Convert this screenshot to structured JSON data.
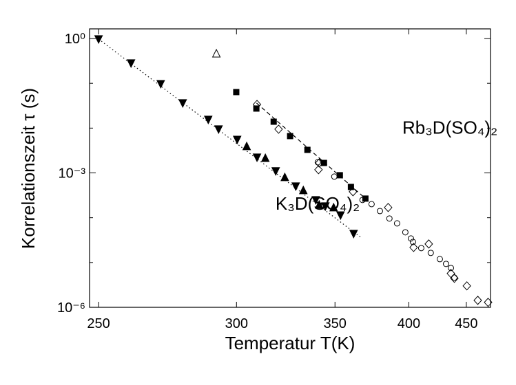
{
  "chart_data": {
    "type": "scatter",
    "xlabel": "Temperatur T(K)",
    "ylabel": "Korrelationszeit τ (s)",
    "xscale": "reciprocal",
    "yscale": "log",
    "xlim": [
      247.3,
      475
    ],
    "ylim": [
      1e-06,
      1.64
    ],
    "xticks": [
      250,
      300,
      350,
      400,
      450
    ],
    "yticks": [
      {
        "value": 1,
        "label": "10⁰"
      },
      {
        "value": 0.001,
        "label": "10⁻³"
      },
      {
        "value": 1e-06,
        "label": "10⁻⁶"
      }
    ],
    "yminor_ticks": [
      0.1,
      0.01,
      0.0001,
      1e-05
    ],
    "annotations": [
      {
        "text": "Rb₃D(SO₄)₂",
        "x": 395,
        "y": 0.0075
      },
      {
        "text": "K₃D(SO₄)₂",
        "x": 318,
        "y": 0.00015
      }
    ],
    "series": [
      {
        "marker": "triangle-down",
        "color": "#000000",
        "fill": true,
        "x": [
          250,
          260.2,
          270.3,
          278.3,
          288.2,
          292.4,
          300.3,
          309.2,
          318.1,
          328.2,
          339.0,
          344.4,
          353.3,
          361.4
        ],
        "values": [
          0.97,
          0.281,
          0.0973,
          0.0362,
          0.0155,
          0.00945,
          0.00556,
          0.00222,
          0.0011,
          0.000504,
          0.000249,
          0.000181,
          0.000114,
          4.41e-05
        ]
      },
      {
        "marker": "triangle-up",
        "color": "#000000",
        "fill": true,
        "x": [
          304.5,
          313.1,
          322.6,
          332.2,
          340.9,
          349.2
        ],
        "values": [
          0.00391,
          0.00214,
          0.000798,
          0.000408,
          0.000194,
          0.000169
        ]
      },
      {
        "marker": "square",
        "color": "#000000",
        "fill": true,
        "x": [
          299.9,
          308.9,
          317.1,
          325.3,
          334.4,
          343.6,
          352.9,
          359.7,
          369.0
        ],
        "values": [
          0.0637,
          0.0273,
          0.0139,
          0.00664,
          0.00327,
          0.00167,
          0.000887,
          0.000486,
          0.000267
        ]
      },
      {
        "marker": "diamond",
        "color": "#000000",
        "fill": false,
        "x": [
          309.2,
          319.5,
          340.9,
          340.5,
          361.0,
          384.6,
          403.7,
          416.0,
          435.4,
          438.6,
          450.5,
          461.5,
          472.4
        ],
        "values": [
          0.0337,
          0.00945,
          0.00167,
          0.00118,
          0.00038,
          0.000169,
          2.17e-05,
          2.59e-05,
          5.69e-06,
          4.44e-06,
          3.01e-06,
          1.43e-06,
          1.29e-06
        ]
      },
      {
        "marker": "circle",
        "color": "#000000",
        "fill": false,
        "x": [
          340.1,
          349.6,
          367.1,
          373.1,
          378.8,
          385.5,
          391.1,
          397.3,
          401.6,
          403.2,
          409.8,
          417.7,
          425.5,
          431.0,
          435.4,
          438.6
        ],
        "values": [
          0.00173,
          0.000826,
          0.000249,
          0.000201,
          0.000141,
          9.59e-05,
          7.48e-05,
          4.73e-05,
          3.44e-05,
          2.88e-05,
          2.1e-05,
          1.64e-05,
          1.19e-05,
          9.31e-06,
          7.54e-06,
          4.6e-06
        ]
      },
      {
        "marker": "triangle-up",
        "color": "#000000",
        "fill": false,
        "x": [
          291.5
        ],
        "values": [
          0.46
        ]
      },
      {
        "line": "dotted",
        "color": "#000000",
        "x": [
          250,
          365.8
        ],
        "values": [
          0.97,
          3.69e-05
        ]
      },
      {
        "line": "dashed",
        "color": "#000000",
        "x": [
          309.0,
          372.2
        ],
        "values": [
          0.0362,
          0.000216
        ]
      }
    ]
  }
}
